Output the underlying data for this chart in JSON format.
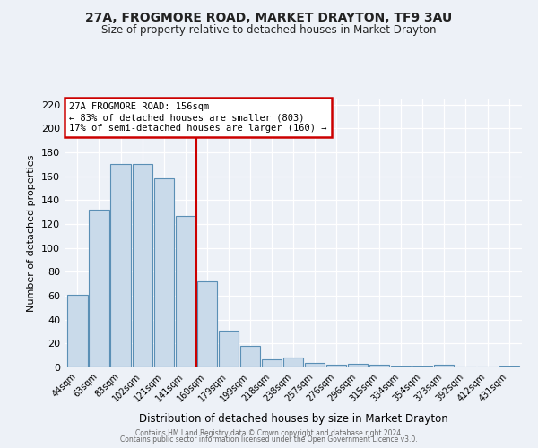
{
  "title": "27A, FROGMORE ROAD, MARKET DRAYTON, TF9 3AU",
  "subtitle": "Size of property relative to detached houses in Market Drayton",
  "xlabel": "Distribution of detached houses by size in Market Drayton",
  "ylabel": "Number of detached properties",
  "bar_labels": [
    "44sqm",
    "63sqm",
    "83sqm",
    "102sqm",
    "121sqm",
    "141sqm",
    "160sqm",
    "179sqm",
    "199sqm",
    "218sqm",
    "238sqm",
    "257sqm",
    "276sqm",
    "296sqm",
    "315sqm",
    "334sqm",
    "354sqm",
    "373sqm",
    "392sqm",
    "412sqm",
    "431sqm"
  ],
  "bar_values": [
    61,
    132,
    170,
    170,
    158,
    127,
    72,
    31,
    18,
    7,
    8,
    4,
    2,
    3,
    2,
    1,
    1,
    2,
    0,
    0,
    1
  ],
  "bar_color": "#c9daea",
  "bar_edge_color": "#5a8fb5",
  "background_color": "#edf1f7",
  "grid_color": "#ffffff",
  "vline_x": 5.5,
  "vline_color": "#cc0000",
  "annotation_text": "27A FROGMORE ROAD: 156sqm\n← 83% of detached houses are smaller (803)\n17% of semi-detached houses are larger (160) →",
  "annotation_box_edgecolor": "#cc0000",
  "ylim": [
    0,
    225
  ],
  "yticks": [
    0,
    20,
    40,
    60,
    80,
    100,
    120,
    140,
    160,
    180,
    200,
    220
  ],
  "footer1": "Contains HM Land Registry data © Crown copyright and database right 2024.",
  "footer2": "Contains public sector information licensed under the Open Government Licence v3.0."
}
